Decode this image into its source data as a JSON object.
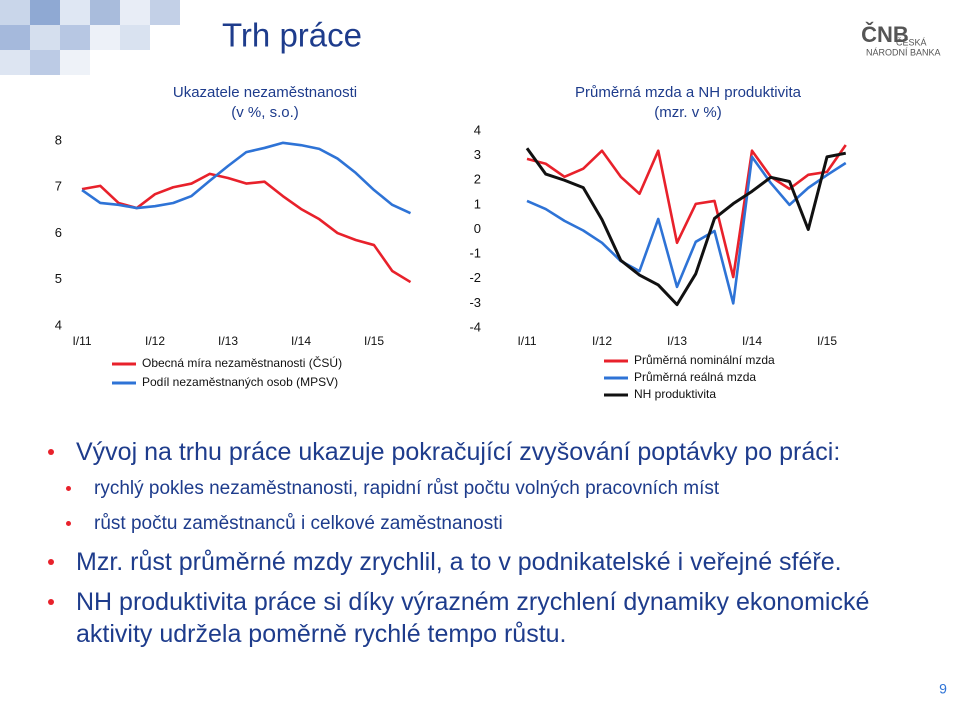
{
  "title": "Trh práce",
  "logo": {
    "mark": "ČNB",
    "line1": "ČESKÁ",
    "line2": "NÁRODNÍ BANKA"
  },
  "chart_data": [
    {
      "type": "line",
      "title": "Ukazatele nezaměstnanosti",
      "subtitle": "(v %, s.o.)",
      "categories": [
        "I/11",
        null,
        null,
        null,
        "I/12",
        null,
        null,
        null,
        "I/13",
        null,
        null,
        null,
        "I/14",
        null,
        null,
        null,
        "I/15",
        null,
        null
      ],
      "series": [
        {
          "name": "Obecná míra nezaměstnanosti (ČSÚ)",
          "color": "#e8212b",
          "values": [
            6.96,
            7.03,
            6.66,
            6.55,
            6.85,
            7.0,
            7.08,
            7.29,
            7.2,
            7.08,
            7.12,
            6.81,
            6.53,
            6.31,
            6.01,
            5.86,
            5.75,
            5.19,
            4.95
          ]
        },
        {
          "name": "Podíl nezaměstnaných osob (MPSV)",
          "color": "#2e73d6",
          "values": [
            6.94,
            6.66,
            6.62,
            6.55,
            6.59,
            6.66,
            6.81,
            7.14,
            7.46,
            7.76,
            7.85,
            7.96,
            7.91,
            7.83,
            7.62,
            7.31,
            6.94,
            6.62,
            6.44
          ]
        }
      ],
      "ylim": [
        4,
        8
      ],
      "yticks": [
        4,
        5,
        6,
        7,
        8
      ],
      "grid": false
    },
    {
      "type": "line",
      "title": "Průměrná mzda a NH produktivita",
      "subtitle": "(mzr. v %)",
      "categories": [
        "I/11",
        null,
        null,
        null,
        "I/12",
        null,
        null,
        null,
        "I/13",
        null,
        null,
        null,
        "I/14",
        null,
        null,
        null,
        "I/15",
        null
      ],
      "series": [
        {
          "name": "Průměrná nominální mzda",
          "color": "#e8212b",
          "values": [
            2.87,
            2.67,
            2.14,
            2.47,
            3.2,
            2.14,
            1.45,
            3.2,
            -0.54,
            1.04,
            1.16,
            -1.93,
            3.2,
            2.14,
            1.65,
            2.22,
            2.34,
            3.43
          ]
        },
        {
          "name": "Průměrná reálná mzda",
          "color": "#2e73d6",
          "values": [
            1.16,
            0.83,
            0.35,
            -0.04,
            -0.54,
            -1.28,
            -1.69,
            0.43,
            -2.33,
            -0.5,
            -0.06,
            -3.0,
            2.95,
            1.89,
            1.0,
            1.69,
            2.21,
            2.7
          ]
        },
        {
          "name": "NH produktivita",
          "color": "#111111",
          "values": [
            3.3,
            2.25,
            2.0,
            1.7,
            0.4,
            -1.25,
            -1.85,
            -2.25,
            -3.05,
            -1.8,
            0.45,
            1.05,
            1.55,
            2.12,
            1.95,
            0.0,
            2.95,
            3.1
          ]
        }
      ],
      "ylim": [
        -4,
        4
      ],
      "yticks": [
        -4,
        -3,
        -2,
        -1,
        0,
        1,
        2,
        3,
        4
      ],
      "grid": false
    }
  ],
  "bullets": [
    {
      "level": 1,
      "text": "Vývoj na trhu práce ukazuje pokračující zvyšování poptávky po práci:"
    },
    {
      "level": 2,
      "text": "rychlý pokles nezaměstnanosti, rapidní růst počtu volných pracovních míst"
    },
    {
      "level": 2,
      "text": "růst počtu zaměstnanců i celkové zaměstnanosti"
    },
    {
      "level": 1,
      "text": "Mzr. růst průměrné mzdy zrychlil, a to v podnikatelské i veřejné sféře."
    },
    {
      "level": 1,
      "text": "NH produktivita práce si díky výrazném zrychlení dynamiky ekonomické aktivity udržela poměrně rychlé tempo růstu."
    }
  ],
  "page_number": "9"
}
